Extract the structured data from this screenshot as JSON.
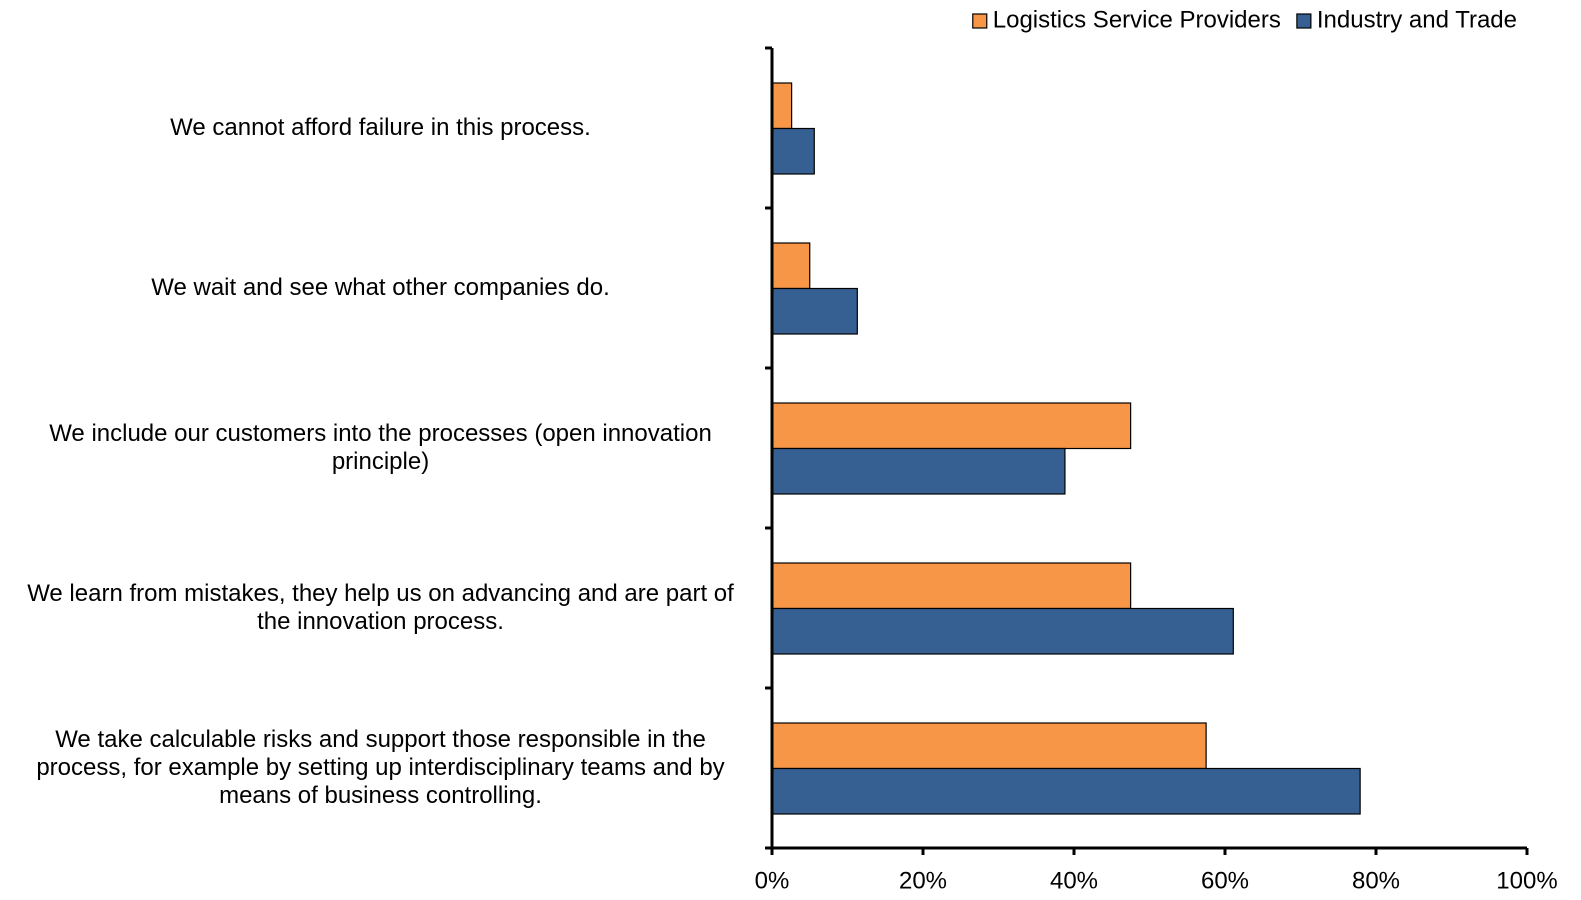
{
  "chart_data": {
    "type": "hbar",
    "categories": [
      "We cannot afford failure in this process.",
      "We wait and see what other companies do.",
      "We include our customers into the processes (open innovation principle)",
      "We learn from mistakes, they help us on advancing and are part of the innovation process.",
      "We take calculable risks and support those responsible in the process, for example by setting up interdisciplinary teams and by means of business controlling."
    ],
    "series": [
      {
        "name": "Logistics Service Providers",
        "color": "#F79646",
        "values": [
          2.6,
          5.0,
          47.5,
          47.5,
          57.5
        ]
      },
      {
        "name": "Industry and Trade",
        "color": "#366092",
        "values": [
          5.6,
          11.3,
          38.8,
          61.1,
          77.9
        ]
      }
    ],
    "xlim": [
      0,
      100
    ],
    "xticks": [
      {
        "value": 0,
        "label": "0%"
      },
      {
        "value": 20,
        "label": "20%"
      },
      {
        "value": 40,
        "label": "40%"
      },
      {
        "value": 60,
        "label": "60%"
      },
      {
        "value": 80,
        "label": "80%"
      },
      {
        "value": 100,
        "label": "100%"
      }
    ],
    "legend": "top-right"
  }
}
